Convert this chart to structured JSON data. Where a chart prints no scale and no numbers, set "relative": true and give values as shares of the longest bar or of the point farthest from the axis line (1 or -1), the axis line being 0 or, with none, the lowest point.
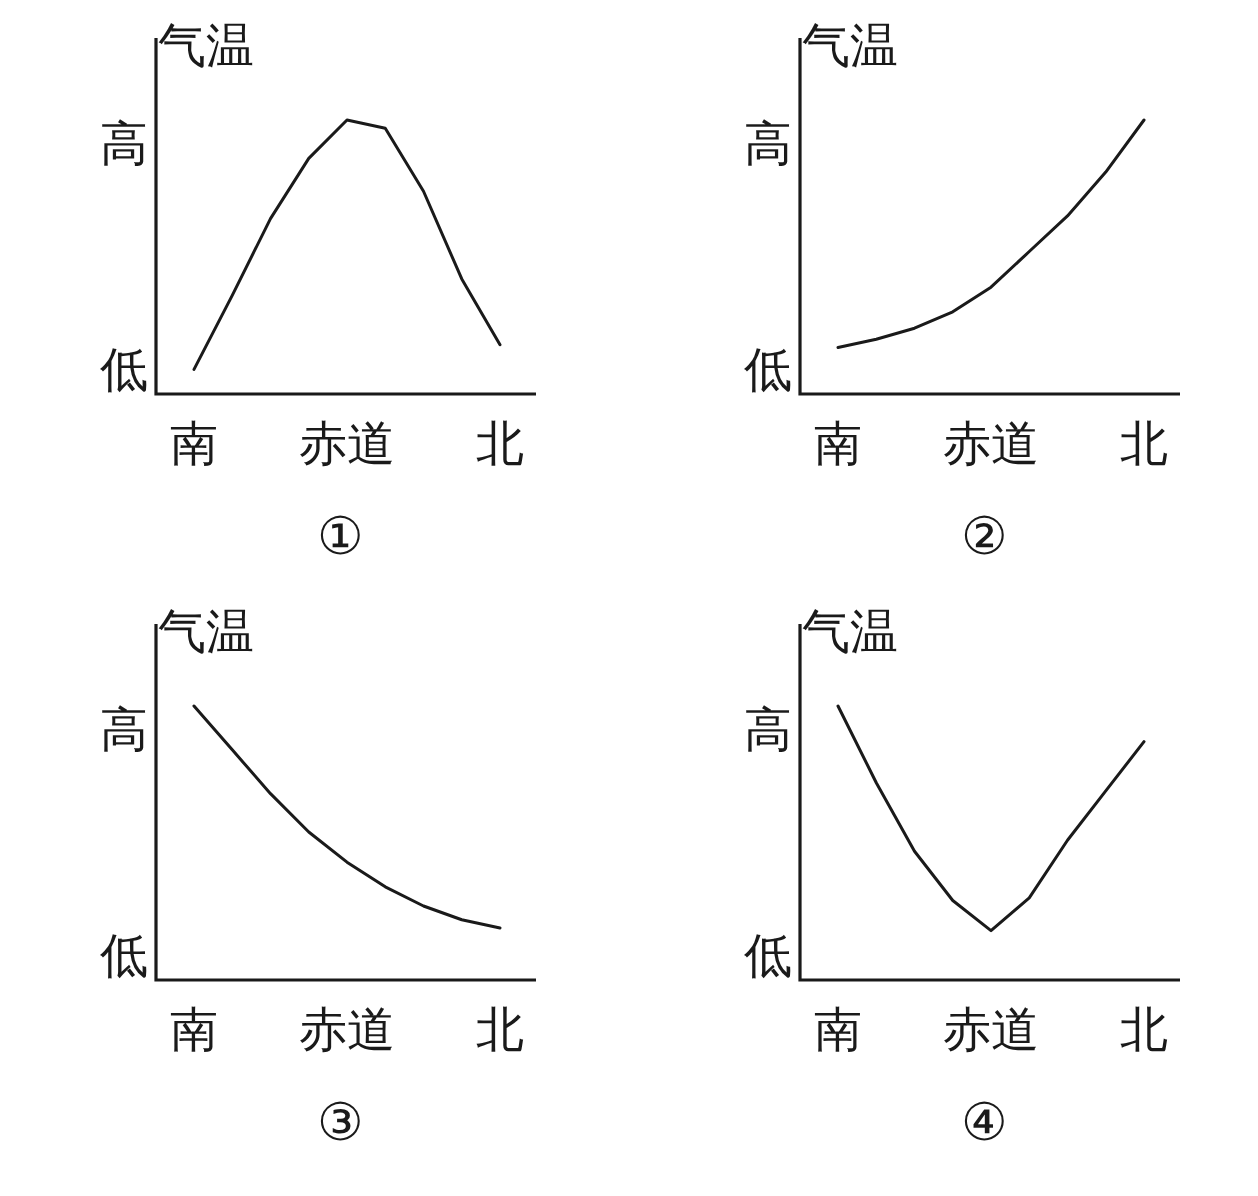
{
  "chart_data": [
    {
      "type": "line",
      "title": "①",
      "ylabel": "气温",
      "relative": true,
      "annotations": [
        "高",
        "低"
      ],
      "categories": [
        "南",
        null,
        null,
        null,
        "赤道",
        null,
        null,
        null,
        "北"
      ],
      "series": [
        {
          "color": "#1a1a1a",
          "values": [
            0.09,
            0.36,
            0.64,
            0.86,
            1.0,
            0.97,
            0.74,
            0.42,
            0.18
          ]
        }
      ]
    },
    {
      "type": "line",
      "title": "②",
      "ylabel": "气温",
      "relative": true,
      "annotations": [
        "高",
        "低"
      ],
      "categories": [
        "南",
        null,
        null,
        null,
        "赤道",
        null,
        null,
        null,
        "北"
      ],
      "series": [
        {
          "color": "#1a1a1a",
          "values": [
            0.17,
            0.2,
            0.24,
            0.3,
            0.39,
            0.52,
            0.65,
            0.81,
            1.0
          ]
        }
      ]
    },
    {
      "type": "line",
      "title": "③",
      "ylabel": "气温",
      "relative": true,
      "annotations": [
        "高",
        "低"
      ],
      "categories": [
        "南",
        null,
        null,
        null,
        "赤道",
        null,
        null,
        null,
        "北"
      ],
      "series": [
        {
          "color": "#1a1a1a",
          "values": [
            1.0,
            0.84,
            0.68,
            0.54,
            0.43,
            0.34,
            0.27,
            0.22,
            0.19
          ]
        }
      ]
    },
    {
      "type": "line",
      "title": "④",
      "ylabel": "气温",
      "relative": true,
      "annotations": [
        "高",
        "低"
      ],
      "categories": [
        "南",
        null,
        null,
        null,
        "赤道",
        null,
        null,
        null,
        "北"
      ],
      "series": [
        {
          "color": "#1a1a1a",
          "values": [
            1.0,
            0.72,
            0.47,
            0.29,
            0.18,
            0.3,
            0.51,
            0.69,
            0.87
          ]
        }
      ]
    }
  ]
}
